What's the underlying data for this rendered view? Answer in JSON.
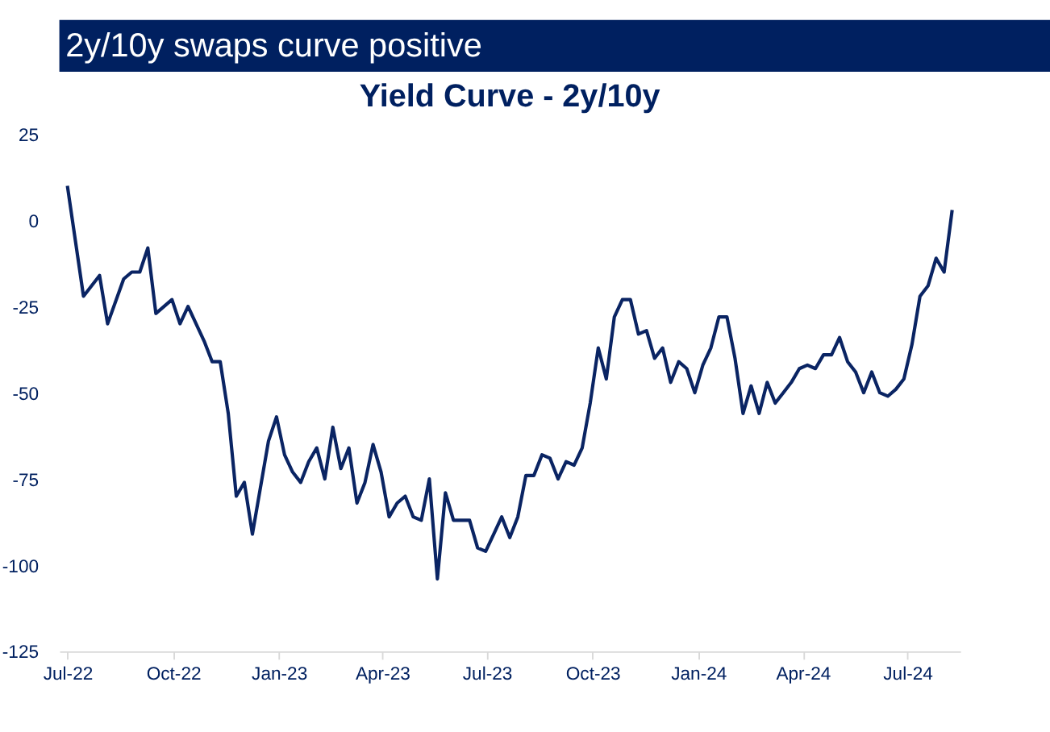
{
  "chart_data": {
    "type": "line",
    "title": "2y/10y swaps curve positive",
    "subtitle": "Yield Curve - 2y/10y",
    "x": [
      "2022-07-01",
      "2022-07-15",
      "2022-07-29",
      "2022-08-05",
      "2022-08-19",
      "2022-08-26",
      "2022-09-02",
      "2022-09-09",
      "2022-09-16",
      "2022-09-30",
      "2022-10-07",
      "2022-10-14",
      "2022-10-28",
      "2022-11-04",
      "2022-11-11",
      "2022-11-18",
      "2022-11-25",
      "2022-12-02",
      "2022-12-09",
      "2022-12-23",
      "2022-12-30",
      "2023-01-06",
      "2023-01-13",
      "2023-01-20",
      "2023-01-27",
      "2023-02-03",
      "2023-02-10",
      "2023-02-17",
      "2023-02-24",
      "2023-03-03",
      "2023-03-10",
      "2023-03-17",
      "2023-03-24",
      "2023-03-31",
      "2023-04-07",
      "2023-04-14",
      "2023-04-21",
      "2023-04-28",
      "2023-05-05",
      "2023-05-12",
      "2023-05-19",
      "2023-05-26",
      "2023-06-02",
      "2023-06-09",
      "2023-06-16",
      "2023-06-23",
      "2023-06-30",
      "2023-07-07",
      "2023-07-14",
      "2023-07-21",
      "2023-07-28",
      "2023-08-04",
      "2023-08-11",
      "2023-08-18",
      "2023-08-25",
      "2023-09-01",
      "2023-09-08",
      "2023-09-15",
      "2023-09-22",
      "2023-09-29",
      "2023-10-06",
      "2023-10-13",
      "2023-10-20",
      "2023-10-27",
      "2023-11-03",
      "2023-11-10",
      "2023-11-17",
      "2023-11-24",
      "2023-12-01",
      "2023-12-08",
      "2023-12-15",
      "2023-12-22",
      "2023-12-29",
      "2024-01-05",
      "2024-01-12",
      "2024-01-19",
      "2024-01-26",
      "2024-02-02",
      "2024-02-09",
      "2024-02-16",
      "2024-02-23",
      "2024-03-01",
      "2024-03-08",
      "2024-03-15",
      "2024-03-22",
      "2024-03-29",
      "2024-04-05",
      "2024-04-12",
      "2024-04-19",
      "2024-04-26",
      "2024-05-03",
      "2024-05-10",
      "2024-05-17",
      "2024-05-24",
      "2024-05-31",
      "2024-06-07",
      "2024-06-14",
      "2024-06-21",
      "2024-06-28",
      "2024-07-05",
      "2024-07-12",
      "2024-07-19",
      "2024-07-26",
      "2024-08-02",
      "2024-08-09"
    ],
    "series": [
      {
        "color": "#0a2463",
        "values": [
          10,
          -22,
          -16,
          -30,
          -17,
          -15,
          -15,
          -8,
          -27,
          -23,
          -30,
          -25,
          -35,
          -41,
          -41,
          -56,
          -80,
          -76,
          -91,
          -64,
          -57,
          -68,
          -73,
          -76,
          -70,
          -66,
          -75,
          -60,
          -72,
          -66,
          -82,
          -76,
          -65,
          -73,
          -86,
          -82,
          -80,
          -86,
          -87,
          -75,
          -104,
          -79,
          -87,
          -87,
          -87,
          -95,
          -96,
          -91,
          -86,
          -92,
          -86,
          -74,
          -74,
          -68,
          -69,
          -75,
          -70,
          -71,
          -66,
          -53,
          -37,
          -46,
          -28,
          -23,
          -23,
          -33,
          -32,
          -40,
          -37,
          -47,
          -41,
          -43,
          -50,
          -42,
          -37,
          -28,
          -28,
          -40,
          -56,
          -48,
          -56,
          -47,
          -53,
          -50,
          -47,
          -43,
          -42,
          -43,
          -39,
          -39,
          -34,
          -41,
          -44,
          -50,
          -44,
          -50,
          -51,
          -49,
          -46,
          -36,
          -22,
          -19,
          -11,
          -15,
          3
        ]
      }
    ],
    "xlim": [
      "2022-06-24",
      "2024-08-16"
    ],
    "xticks": [
      {
        "value": "2022-07-01",
        "label": "Jul-22"
      },
      {
        "value": "2022-10-01",
        "label": "Oct-22"
      },
      {
        "value": "2023-01-01",
        "label": "Jan-23"
      },
      {
        "value": "2023-04-01",
        "label": "Apr-23"
      },
      {
        "value": "2023-07-01",
        "label": "Jul-23"
      },
      {
        "value": "2023-10-01",
        "label": "Oct-23"
      },
      {
        "value": "2024-01-01",
        "label": "Jan-24"
      },
      {
        "value": "2024-04-01",
        "label": "Apr-24"
      },
      {
        "value": "2024-07-01",
        "label": "Jul-24"
      }
    ],
    "ylim": [
      -125,
      25
    ],
    "yticks": [
      -125,
      -100,
      -75,
      -50,
      -25,
      0,
      25
    ],
    "grid": false,
    "marker": "none",
    "line_style": "solid"
  }
}
